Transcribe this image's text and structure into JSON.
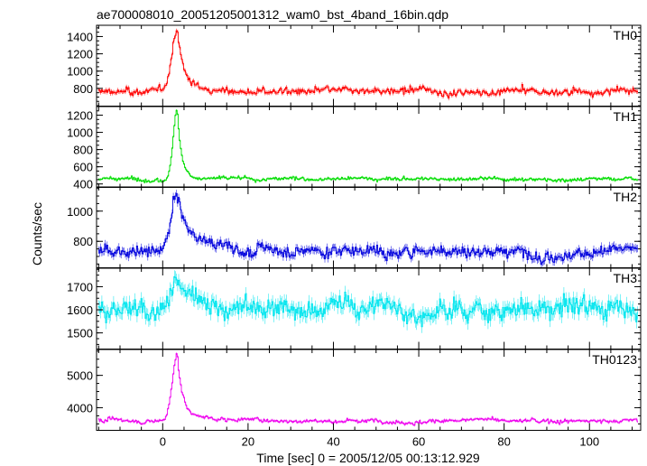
{
  "chart_data": {
    "type": "line",
    "title": "ae700008010_20051205001312_wam0_bst_4band_16bin.qdp",
    "xlabel": "Time [sec] 0 = 2005/12/05 00:13:12.929",
    "ylabel": "Counts/sec",
    "xlim": [
      -15.5,
      112
    ],
    "x_ticks": [
      0,
      20,
      40,
      60,
      80,
      100
    ],
    "x_tick_labels": [
      "0",
      "20",
      "40",
      "60",
      "80",
      "100"
    ],
    "bin_width_sec": 0.25,
    "shared_x": true,
    "grid": false,
    "panels": [
      {
        "name": "TH0",
        "color": "#ff0000",
        "ylim": [
          595,
          1530
        ],
        "y_ticks": [
          800,
          1000,
          1200,
          1400
        ],
        "y_tick_labels": [
          "800",
          "1000",
          "1200",
          "1400"
        ],
        "baseline": 760,
        "noise": 45,
        "peak_time": 3.5,
        "peak_value": 1500,
        "peak_width": 1.3,
        "tail_amp": 110,
        "tail_tau": 6
      },
      {
        "name": "TH1",
        "color": "#00dd00",
        "ylim": [
          360,
          1300
        ],
        "y_ticks": [
          400,
          600,
          800,
          1000,
          1200
        ],
        "y_tick_labels": [
          "400",
          "600",
          "800",
          "1000",
          "1200"
        ],
        "baseline": 460,
        "noise": 25,
        "peak_time": 3.5,
        "peak_value": 1290,
        "peak_width": 1.0,
        "tail_amp": 60,
        "tail_tau": 4
      },
      {
        "name": "TH2",
        "color": "#0000dd",
        "ylim": [
          625,
          1160
        ],
        "y_ticks": [
          800,
          1000
        ],
        "y_tick_labels": [
          "800",
          "1000"
        ],
        "baseline": 740,
        "noise": 45,
        "peak_time": 3.5,
        "peak_value": 1120,
        "peak_width": 1.4,
        "tail_amp": 120,
        "tail_tau": 8
      },
      {
        "name": "TH3",
        "color": "#00e5ee",
        "ylim": [
          1430,
          1780
        ],
        "y_ticks": [
          1500,
          1600,
          1700
        ],
        "y_tick_labels": [
          "1500",
          "1600",
          "1700"
        ],
        "baseline": 1610,
        "noise": 50,
        "peak_time": 3.5,
        "peak_value": 1740,
        "peak_width": 2.0,
        "tail_amp": 30,
        "tail_tau": 5
      },
      {
        "name": "TH0123",
        "color": "#ee00ee",
        "ylim": [
          3300,
          5800
        ],
        "y_ticks": [
          4000,
          5000
        ],
        "y_tick_labels": [
          "4000",
          "5000"
        ],
        "baseline": 3600,
        "noise": 70,
        "peak_time": 3.5,
        "peak_value": 5750,
        "peak_width": 1.2,
        "tail_amp": 250,
        "tail_tau": 6
      }
    ]
  }
}
